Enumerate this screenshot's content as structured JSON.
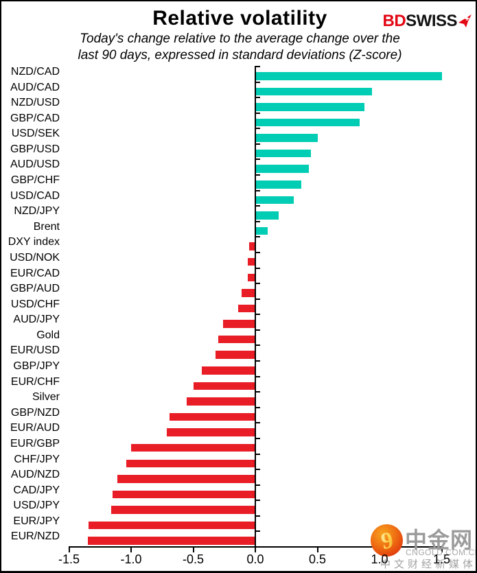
{
  "header": {
    "title": "Relative volatility",
    "subtitle_line1": "Today's change relative to the average change over the",
    "subtitle_line2": "last 90 days, expressed in standard deviations (Z-score)"
  },
  "logo": {
    "text_bd": "BD",
    "text_swiss": "SWISS",
    "bd_color": "#e30613",
    "swiss_color": "#121212"
  },
  "chart_data": {
    "type": "bar",
    "orientation": "horizontal",
    "title": "Relative volatility",
    "xlim": [
      -1.5,
      1.5
    ],
    "x_ticks": [
      -1.5,
      -1.0,
      -0.5,
      0.0,
      0.5,
      1.0,
      1.5
    ],
    "x_tick_labels": [
      "-1.5",
      "-1.0",
      "-0.5",
      "0.0",
      "0.5",
      "1.0",
      "1.5"
    ],
    "grid": false,
    "legend": false,
    "categories": [
      "NZD/CAD",
      "AUD/CAD",
      "NZD/USD",
      "GBP/CAD",
      "USD/SEK",
      "GBP/USD",
      "AUD/USD",
      "GBP/CHF",
      "USD/CAD",
      "NZD/JPY",
      "Brent",
      "DXY index",
      "USD/NOK",
      "EUR/CAD",
      "GBP/AUD",
      "USD/CHF",
      "AUD/JPY",
      "Gold",
      "EUR/USD",
      "GBP/JPY",
      "EUR/CHF",
      "Silver",
      "GBP/NZD",
      "EUR/AUD",
      "EUR/GBP",
      "CHF/JPY",
      "AUD/NZD",
      "CAD/JPY",
      "USD/JPY",
      "EUR/JPY",
      "EUR/NZD"
    ],
    "values": [
      1.5,
      0.94,
      0.88,
      0.84,
      0.5,
      0.45,
      0.43,
      0.37,
      0.31,
      0.19,
      0.1,
      -0.05,
      -0.06,
      -0.06,
      -0.11,
      -0.14,
      -0.26,
      -0.3,
      -0.32,
      -0.43,
      -0.5,
      -0.55,
      -0.69,
      -0.71,
      -1.0,
      -1.04,
      -1.11,
      -1.15,
      -1.16,
      -1.34,
      -1.35
    ],
    "positive_color": "#01cdb4",
    "negative_color": "#e81d26"
  },
  "watermark": {
    "name_cn": "中金网",
    "domain": "CNGOLD.COM.CN",
    "tagline_cn": "中文财经新媒体",
    "logo_icon": "cngold-cloud-icon"
  }
}
